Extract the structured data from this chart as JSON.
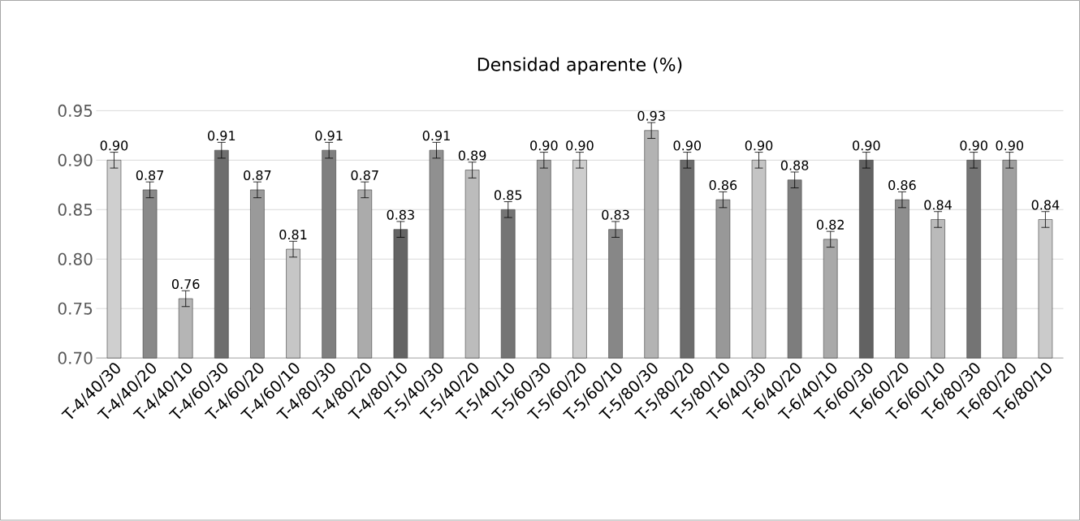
{
  "chart_data": {
    "type": "bar",
    "title": "Densidad aparente (%)",
    "categories": [
      "T-4/40/30",
      "T-4/40/20",
      "T-4/40/10",
      "T-4/60/30",
      "T-4/60/20",
      "T-4/60/10",
      "T-4/80/30",
      "T-4/80/20",
      "T-4/80/10",
      "T-5/40/30",
      "T-5/40/20",
      "T-5/40/10",
      "T-5/60/30",
      "T-5/60/20",
      "T-5/60/10",
      "T-5/80/30",
      "T-5/80/20",
      "T-5/80/10",
      "T-6/40/30",
      "T-6/40/20",
      "T-6/40/10",
      "T-6/60/30",
      "T-6/60/20",
      "T-6/60/10",
      "T-6/80/30",
      "T-6/80/20",
      "T-6/80/10"
    ],
    "values": [
      0.9,
      0.87,
      0.76,
      0.91,
      0.87,
      0.81,
      0.91,
      0.87,
      0.83,
      0.91,
      0.89,
      0.85,
      0.9,
      0.9,
      0.83,
      0.93,
      0.9,
      0.86,
      0.9,
      0.88,
      0.82,
      0.9,
      0.86,
      0.84,
      0.9,
      0.9,
      0.84
    ],
    "value_labels": [
      "0.90",
      "0.87",
      "0.76",
      "0.91",
      "0.87",
      "0.81",
      "0.91",
      "0.87",
      "0.83",
      "0.91",
      "0.89",
      "0.85",
      "0.90",
      "0.90",
      "0.83",
      "0.93",
      "0.90",
      "0.86",
      "0.90",
      "0.88",
      "0.82",
      "0.90",
      "0.86",
      "0.84",
      "0.90",
      "0.90",
      "0.84"
    ],
    "errors": [
      0.008,
      0.008,
      0.008,
      0.008,
      0.008,
      0.008,
      0.008,
      0.008,
      0.008,
      0.008,
      0.008,
      0.008,
      0.008,
      0.008,
      0.008,
      0.008,
      0.008,
      0.008,
      0.008,
      0.008,
      0.008,
      0.008,
      0.008,
      0.008,
      0.008,
      0.008,
      0.008
    ],
    "color": "#404040",
    "ylim": [
      0.7,
      0.95
    ],
    "yticks": [
      {
        "value": 0.7,
        "label": "0.70"
      },
      {
        "value": 0.75,
        "label": "0.75"
      },
      {
        "value": 0.8,
        "label": "0.80"
      },
      {
        "value": 0.85,
        "label": "0.85"
      },
      {
        "value": 0.9,
        "label": "0.90"
      },
      {
        "value": 0.95,
        "label": "0.95"
      }
    ],
    "grid": "y"
  }
}
